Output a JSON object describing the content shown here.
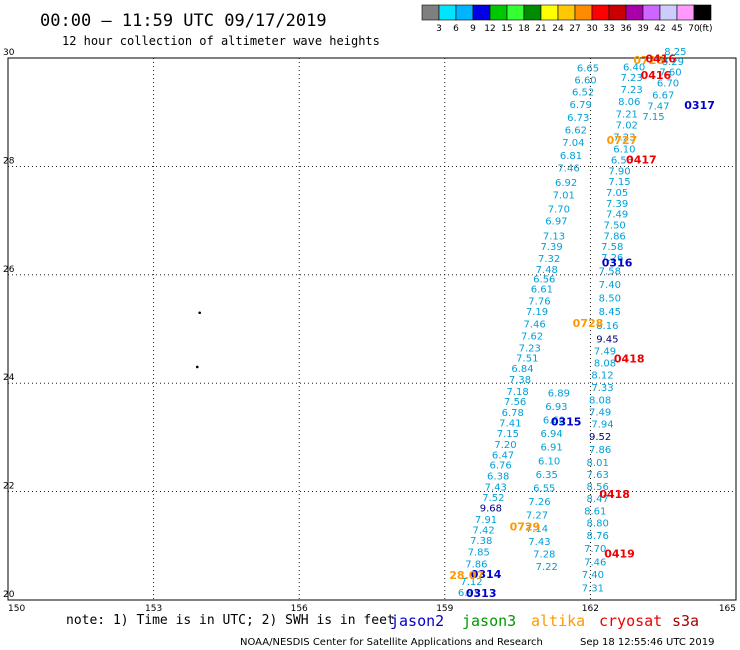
{
  "header": {
    "title": "00:00 – 11:59 UTC 09/17/2019",
    "subtitle": "12 hour collection of altimeter wave heights"
  },
  "colorbar": {
    "unit": "(ft)",
    "bins": [
      {
        "color": "#7f7f7f",
        "label": "3"
      },
      {
        "color": "#00e5ff",
        "label": "6"
      },
      {
        "color": "#00b4ff",
        "label": "9"
      },
      {
        "color": "#0000e6",
        "label": "12"
      },
      {
        "color": "#00c800",
        "label": "15"
      },
      {
        "color": "#33ff33",
        "label": "18"
      },
      {
        "color": "#008c00",
        "label": "21"
      },
      {
        "color": "#ffff00",
        "label": "24"
      },
      {
        "color": "#ffc800",
        "label": "27"
      },
      {
        "color": "#ff8c00",
        "label": "30"
      },
      {
        "color": "#ff0000",
        "label": "33"
      },
      {
        "color": "#c80000",
        "label": "36"
      },
      {
        "color": "#aa00aa",
        "label": "39"
      },
      {
        "color": "#cc66ff",
        "label": "42"
      },
      {
        "color": "#ccccff",
        "label": "45"
      },
      {
        "color": "#ff99ff",
        "label": "70"
      },
      {
        "color": "#000000",
        "label": ""
      }
    ]
  },
  "footer": {
    "note": "note: 1) Time is in UTC; 2) SWH is in feet",
    "satellites": [
      {
        "name": "jason2",
        "color": "#0000cc"
      },
      {
        "name": "jason3",
        "color": "#009900"
      },
      {
        "name": "altika",
        "color": "#ff9900"
      },
      {
        "name": "cryosat",
        "color": "#ee0000"
      },
      {
        "name": "s3a",
        "color": "#aa0000"
      }
    ],
    "credit": "NOAA/NESDIS Center for Satellite Applications and Research",
    "timestamp": "Sep 18 12:55:46 UTC 2019"
  },
  "chart_data": {
    "type": "scatter",
    "title": "00:00 – 11:59 UTC 09/17/2019",
    "xlim": [
      150,
      165
    ],
    "ylim": [
      20,
      30
    ],
    "x_ticks": [
      "150",
      "153",
      "156",
      "159",
      "162",
      "165"
    ],
    "y_ticks": [
      "20",
      "22",
      "24",
      "26",
      "28",
      "30"
    ],
    "grid": true,
    "land_points": [
      {
        "x": 153.95,
        "y": 25.3
      },
      {
        "x": 153.9,
        "y": 24.3
      }
    ],
    "series": [
      {
        "name": "jason2",
        "color": "#00a0d8",
        "points": [
          {
            "x": 159.5,
            "y": 20.12,
            "v": "6.95"
          },
          {
            "x": 159.55,
            "y": 20.32,
            "v": "7.12"
          },
          {
            "x": 159.65,
            "y": 20.65,
            "v": "7.86"
          },
          {
            "x": 159.7,
            "y": 20.87,
            "v": "7.85"
          },
          {
            "x": 159.75,
            "y": 21.08,
            "v": "7.38"
          },
          {
            "x": 159.8,
            "y": 21.27,
            "v": "7.42"
          },
          {
            "x": 159.85,
            "y": 21.47,
            "v": "7.91"
          },
          {
            "x": 159.95,
            "y": 21.68,
            "v": "9.68",
            "c": "#000080"
          },
          {
            "x": 160.0,
            "y": 21.87,
            "v": "7.52"
          },
          {
            "x": 160.05,
            "y": 22.07,
            "v": "7.43"
          },
          {
            "x": 160.1,
            "y": 22.27,
            "v": "6.38"
          },
          {
            "x": 160.15,
            "y": 22.47,
            "v": "6.76"
          },
          {
            "x": 160.2,
            "y": 22.66,
            "v": "6.47"
          },
          {
            "x": 160.25,
            "y": 22.85,
            "v": "7.20"
          },
          {
            "x": 160.3,
            "y": 23.05,
            "v": "7.15"
          },
          {
            "x": 160.35,
            "y": 23.25,
            "v": "7.41"
          },
          {
            "x": 160.4,
            "y": 23.44,
            "v": "6.78"
          },
          {
            "x": 160.45,
            "y": 23.64,
            "v": "7.56"
          },
          {
            "x": 160.5,
            "y": 23.83,
            "v": "7.18"
          },
          {
            "x": 160.55,
            "y": 24.05,
            "v": "7.38"
          },
          {
            "x": 160.6,
            "y": 24.25,
            "v": "6.84"
          },
          {
            "x": 160.7,
            "y": 24.45,
            "v": "7.51"
          },
          {
            "x": 160.75,
            "y": 24.63,
            "v": "7.23"
          },
          {
            "x": 160.8,
            "y": 24.85,
            "v": "7.62"
          },
          {
            "x": 160.85,
            "y": 25.07,
            "v": "7.46"
          },
          {
            "x": 160.9,
            "y": 25.3,
            "v": "7.19"
          },
          {
            "x": 160.95,
            "y": 25.5,
            "v": "7.76"
          },
          {
            "x": 161.0,
            "y": 25.72,
            "v": "6.61"
          },
          {
            "x": 161.05,
            "y": 25.9,
            "v": "6.56"
          },
          {
            "x": 161.1,
            "y": 26.08,
            "v": "7.48"
          },
          {
            "x": 161.15,
            "y": 26.28,
            "v": "7.32"
          },
          {
            "x": 161.2,
            "y": 26.5,
            "v": "7.39"
          },
          {
            "x": 161.25,
            "y": 26.7,
            "v": "7.13"
          },
          {
            "x": 161.3,
            "y": 26.97,
            "v": "6.97"
          },
          {
            "x": 161.35,
            "y": 27.2,
            "v": "7.70"
          },
          {
            "x": 161.45,
            "y": 27.45,
            "v": "7.01"
          },
          {
            "x": 161.5,
            "y": 27.68,
            "v": "6.92"
          },
          {
            "x": 161.55,
            "y": 27.95,
            "v": "7.46"
          },
          {
            "x": 161.6,
            "y": 28.18,
            "v": "6.81"
          },
          {
            "x": 161.65,
            "y": 28.42,
            "v": "7.04"
          },
          {
            "x": 161.7,
            "y": 28.65,
            "v": "6.62"
          },
          {
            "x": 161.75,
            "y": 28.88,
            "v": "6.73"
          },
          {
            "x": 161.8,
            "y": 29.12,
            "v": "6.79"
          },
          {
            "x": 161.85,
            "y": 29.35,
            "v": "6.52"
          },
          {
            "x": 161.9,
            "y": 29.58,
            "v": "6.60"
          },
          {
            "x": 161.95,
            "y": 29.8,
            "v": "6.65"
          }
        ]
      },
      {
        "name": "altika",
        "color": "#00a0d8",
        "points": [
          {
            "x": 162.05,
            "y": 20.2,
            "v": "7.31"
          },
          {
            "x": 162.05,
            "y": 20.45,
            "v": "7.40"
          },
          {
            "x": 162.1,
            "y": 20.68,
            "v": "7.46"
          },
          {
            "x": 162.1,
            "y": 20.93,
            "v": "7.70"
          },
          {
            "x": 162.15,
            "y": 21.17,
            "v": "8.76"
          },
          {
            "x": 162.15,
            "y": 21.4,
            "v": "8.80"
          },
          {
            "x": 162.1,
            "y": 21.62,
            "v": "8.61"
          },
          {
            "x": 162.15,
            "y": 21.85,
            "v": "8.47"
          },
          {
            "x": 162.15,
            "y": 22.08,
            "v": "8.56"
          },
          {
            "x": 162.15,
            "y": 22.3,
            "v": "7.63"
          },
          {
            "x": 162.15,
            "y": 22.52,
            "v": "8.01"
          },
          {
            "x": 162.2,
            "y": 22.76,
            "v": "7.86"
          },
          {
            "x": 162.2,
            "y": 23.0,
            "v": "9.52",
            "c": "#000080"
          },
          {
            "x": 162.25,
            "y": 23.23,
            "v": "7.94"
          },
          {
            "x": 162.2,
            "y": 23.45,
            "v": "7.49"
          },
          {
            "x": 162.2,
            "y": 23.67,
            "v": "8.08"
          },
          {
            "x": 162.25,
            "y": 23.9,
            "v": "7.33"
          },
          {
            "x": 162.25,
            "y": 24.13,
            "v": "8.12"
          },
          {
            "x": 162.3,
            "y": 24.35,
            "v": "8.08"
          },
          {
            "x": 162.3,
            "y": 24.58,
            "v": "7.49"
          },
          {
            "x": 162.35,
            "y": 24.8,
            "v": "9.45",
            "c": "#000080"
          },
          {
            "x": 162.35,
            "y": 25.05,
            "v": "8.16"
          },
          {
            "x": 162.4,
            "y": 25.3,
            "v": "8.45"
          },
          {
            "x": 162.4,
            "y": 25.55,
            "v": "8.50"
          },
          {
            "x": 162.4,
            "y": 25.8,
            "v": "7.40"
          },
          {
            "x": 162.4,
            "y": 26.05,
            "v": "7.58"
          },
          {
            "x": 162.45,
            "y": 26.3,
            "v": "7.26"
          },
          {
            "x": 162.45,
            "y": 26.5,
            "v": "7.58"
          },
          {
            "x": 162.5,
            "y": 26.7,
            "v": "7.86"
          },
          {
            "x": 162.5,
            "y": 26.9,
            "v": "7.50"
          },
          {
            "x": 162.55,
            "y": 27.1,
            "v": "7.49"
          },
          {
            "x": 162.55,
            "y": 27.3,
            "v": "7.39"
          },
          {
            "x": 162.55,
            "y": 27.5,
            "v": "7.05"
          },
          {
            "x": 162.6,
            "y": 27.7,
            "v": "7.15"
          },
          {
            "x": 162.6,
            "y": 27.9,
            "v": "7.90"
          },
          {
            "x": 162.65,
            "y": 28.1,
            "v": "6.53"
          },
          {
            "x": 162.7,
            "y": 28.3,
            "v": "6.10"
          },
          {
            "x": 162.7,
            "y": 28.52,
            "v": "7.23"
          },
          {
            "x": 162.75,
            "y": 28.75,
            "v": "7.02"
          },
          {
            "x": 162.75,
            "y": 28.95,
            "v": "7.21"
          },
          {
            "x": 162.8,
            "y": 29.18,
            "v": "8.06"
          },
          {
            "x": 162.85,
            "y": 29.4,
            "v": "7.23"
          },
          {
            "x": 162.85,
            "y": 29.62,
            "v": "7.23"
          },
          {
            "x": 162.9,
            "y": 29.82,
            "v": "6.40"
          }
        ]
      },
      {
        "name": "cryosat",
        "color": "#00a0d8",
        "points": [
          {
            "x": 161.1,
            "y": 20.6,
            "v": "7.22"
          },
          {
            "x": 161.05,
            "y": 20.83,
            "v": "7.28"
          },
          {
            "x": 160.95,
            "y": 21.06,
            "v": "7.43"
          },
          {
            "x": 160.9,
            "y": 21.3,
            "v": "7.14"
          },
          {
            "x": 160.9,
            "y": 21.55,
            "v": "7.27"
          },
          {
            "x": 160.95,
            "y": 21.8,
            "v": "7.26"
          },
          {
            "x": 161.05,
            "y": 22.05,
            "v": "6.55"
          },
          {
            "x": 161.1,
            "y": 22.3,
            "v": "6.35"
          },
          {
            "x": 161.15,
            "y": 22.55,
            "v": "6.10"
          },
          {
            "x": 161.2,
            "y": 22.8,
            "v": "6.91"
          },
          {
            "x": 161.2,
            "y": 23.05,
            "v": "6.94"
          },
          {
            "x": 161.25,
            "y": 23.3,
            "v": "6.60"
          },
          {
            "x": 161.3,
            "y": 23.55,
            "v": "6.93"
          },
          {
            "x": 161.35,
            "y": 23.8,
            "v": "6.89"
          },
          {
            "x": 163.3,
            "y": 28.9,
            "v": "7.15"
          },
          {
            "x": 163.4,
            "y": 29.1,
            "v": "7.47"
          },
          {
            "x": 163.5,
            "y": 29.3,
            "v": "6.67"
          },
          {
            "x": 163.6,
            "y": 29.52,
            "v": "6.70"
          },
          {
            "x": 163.65,
            "y": 29.72,
            "v": "7.60"
          },
          {
            "x": 163.7,
            "y": 29.92,
            "v": "8.29"
          },
          {
            "x": 163.75,
            "y": 30.1,
            "v": "8.25"
          }
        ]
      }
    ],
    "time_labels": [
      {
        "text": "0313",
        "x": 159.75,
        "y": 20.12,
        "color": "#0000cc"
      },
      {
        "text": "0314",
        "x": 159.85,
        "y": 20.47,
        "color": "#0000cc"
      },
      {
        "text": "0315",
        "x": 161.5,
        "y": 23.28,
        "color": "#0000cc"
      },
      {
        "text": "0316",
        "x": 162.55,
        "y": 26.22,
        "color": "#0000cc"
      },
      {
        "text": "0317",
        "x": 164.25,
        "y": 29.12,
        "color": "#0000cc"
      },
      {
        "text": "28.07",
        "x": 159.45,
        "y": 20.45,
        "color": "#ff9900"
      },
      {
        "text": "0729",
        "x": 160.65,
        "y": 21.35,
        "color": "#ff9900"
      },
      {
        "text": "0728",
        "x": 161.95,
        "y": 25.1,
        "color": "#ff9900"
      },
      {
        "text": "0727",
        "x": 162.65,
        "y": 28.48,
        "color": "#ff9900"
      },
      {
        "text": "0726",
        "x": 163.2,
        "y": 29.95,
        "color": "#ff9900"
      },
      {
        "text": "0419",
        "x": 162.6,
        "y": 20.85,
        "color": "#ee0000"
      },
      {
        "text": "0418",
        "x": 162.5,
        "y": 21.95,
        "color": "#ee0000"
      },
      {
        "text": "0418",
        "x": 162.8,
        "y": 24.45,
        "color": "#ee0000"
      },
      {
        "text": "0417",
        "x": 163.05,
        "y": 28.12,
        "color": "#ee0000"
      },
      {
        "text": "0416",
        "x": 163.35,
        "y": 29.68,
        "color": "#ee0000"
      },
      {
        "text": "0416",
        "x": 163.45,
        "y": 29.98,
        "color": "#ee0000"
      }
    ]
  }
}
